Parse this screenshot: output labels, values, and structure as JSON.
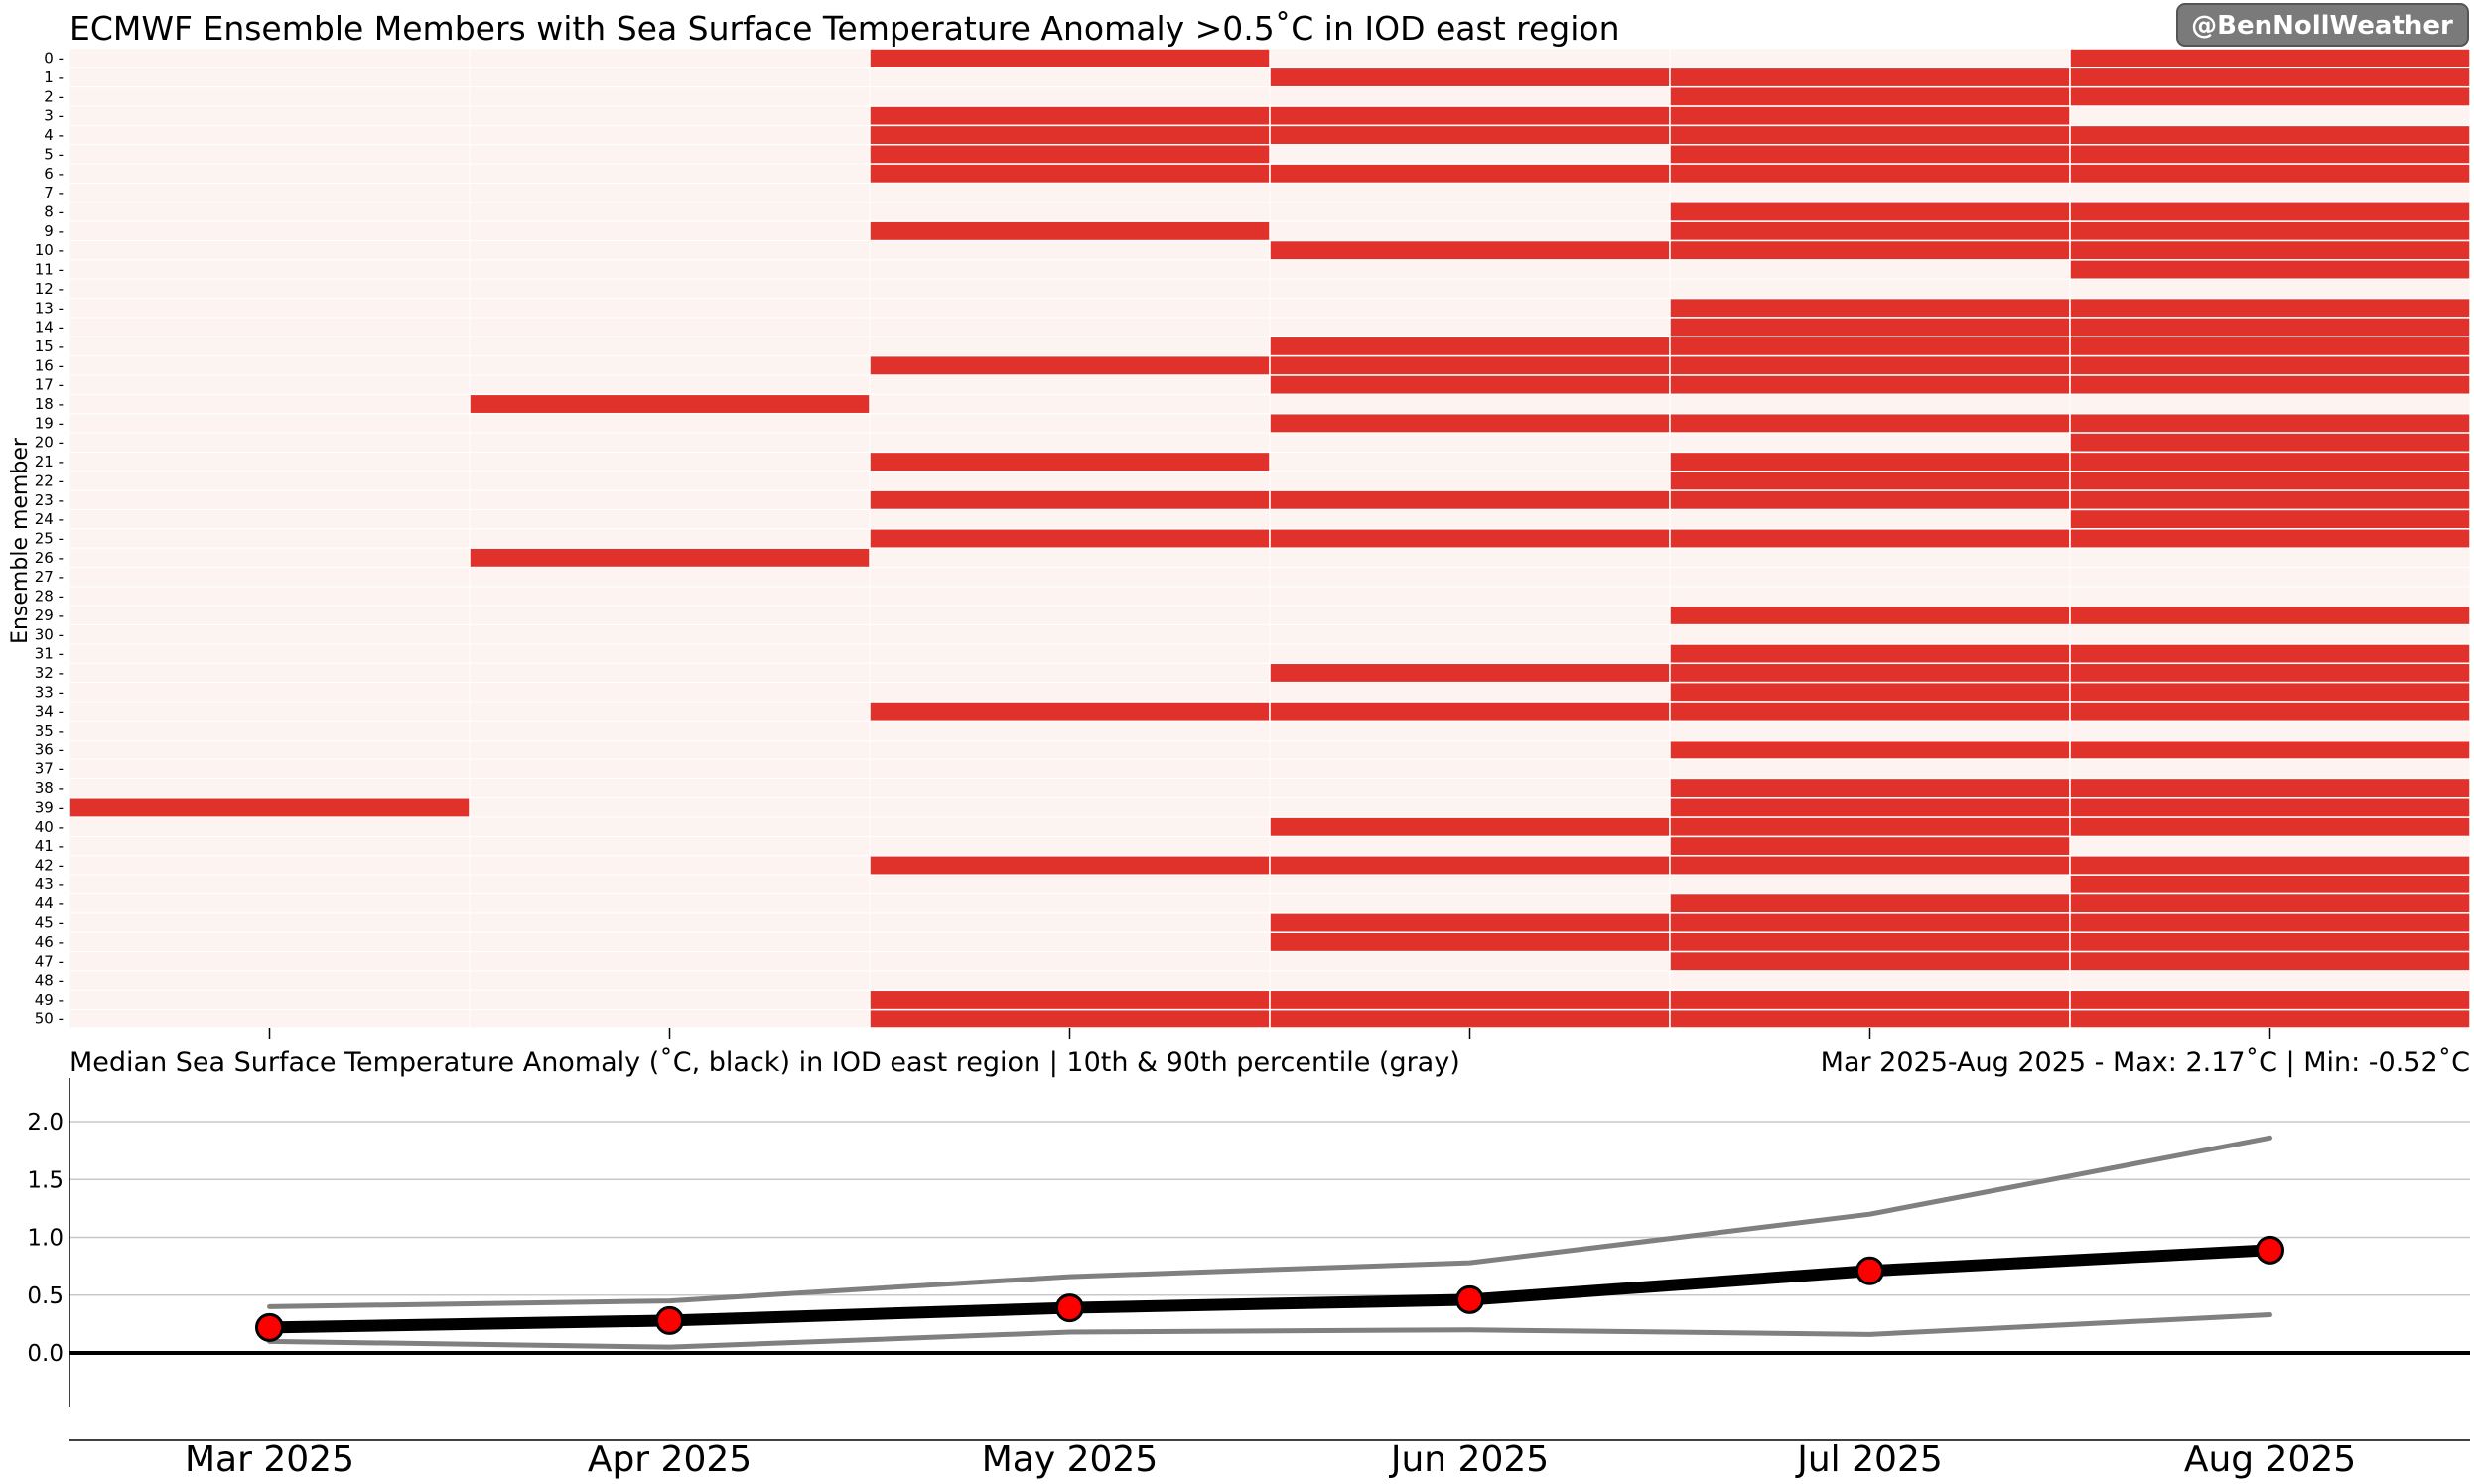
{
  "badge": "@BenNollWeather",
  "chart_data": [
    {
      "type": "heatmap",
      "title": "ECMWF Ensemble Members with Sea Surface Temperature Anomaly >0.5˚C in IOD east region",
      "ylabel": "Ensemble member",
      "months": [
        "Mar 2025",
        "Apr 2025",
        "May 2025",
        "Jun 2025",
        "Jul 2025",
        "Aug 2025"
      ],
      "members": [
        0,
        1,
        2,
        3,
        4,
        5,
        6,
        7,
        8,
        9,
        10,
        11,
        12,
        13,
        14,
        15,
        16,
        17,
        18,
        19,
        20,
        21,
        22,
        23,
        24,
        25,
        26,
        27,
        28,
        29,
        30,
        31,
        32,
        33,
        34,
        35,
        36,
        37,
        38,
        39,
        40,
        41,
        42,
        43,
        44,
        45,
        46,
        47,
        48,
        49,
        50
      ],
      "exceed": {
        "Mar 2025": [
          39
        ],
        "Apr 2025": [
          18,
          26
        ],
        "May 2025": [
          0,
          3,
          4,
          5,
          6,
          9,
          16,
          21,
          23,
          25,
          34,
          42,
          49,
          50
        ],
        "Jun 2025": [
          1,
          3,
          4,
          6,
          10,
          15,
          16,
          17,
          19,
          23,
          25,
          32,
          34,
          40,
          42,
          45,
          46,
          49,
          50
        ],
        "Jul 2025": [
          1,
          2,
          3,
          4,
          5,
          6,
          8,
          9,
          10,
          13,
          14,
          15,
          16,
          17,
          19,
          21,
          22,
          23,
          25,
          29,
          31,
          32,
          33,
          34,
          36,
          38,
          39,
          40,
          41,
          42,
          44,
          45,
          46,
          47,
          49,
          50
        ],
        "Aug 2025": [
          0,
          1,
          2,
          4,
          5,
          6,
          8,
          9,
          10,
          11,
          13,
          14,
          15,
          16,
          17,
          19,
          20,
          21,
          22,
          23,
          24,
          25,
          29,
          31,
          32,
          33,
          34,
          36,
          38,
          39,
          40,
          42,
          43,
          44,
          45,
          46,
          47,
          49,
          50
        ]
      },
      "colors": {
        "exceed": "#e0312a",
        "not_exceed": "#fdf3f0"
      }
    },
    {
      "type": "line",
      "title": "Median Sea Surface Temperature Anomaly (˚C, black) in IOD east region | 10th & 90th percentile (gray)",
      "subtitle": "Mar 2025-Aug 2025 - Max: 2.17˚C | Min: -0.52˚C",
      "categories": [
        "Mar 2025",
        "Apr 2025",
        "May 2025",
        "Jun 2025",
        "Jul 2025",
        "Aug 2025"
      ],
      "series": [
        {
          "values": [
            0.22,
            0.28,
            0.39,
            0.46,
            0.71,
            0.89
          ],
          "color": "#000000",
          "marker": "#ff0000"
        },
        {
          "values": [
            0.4,
            0.45,
            0.66,
            0.78,
            1.2,
            1.86
          ],
          "color": "#808080"
        },
        {
          "values": [
            0.1,
            0.05,
            0.18,
            0.2,
            0.16,
            0.33
          ],
          "color": "#808080"
        }
      ],
      "yticks": [
        "0.0",
        "0.5",
        "1.0",
        "1.5",
        "2.0"
      ],
      "ylim": [
        -0.46,
        2.32
      ],
      "grid": true
    }
  ]
}
